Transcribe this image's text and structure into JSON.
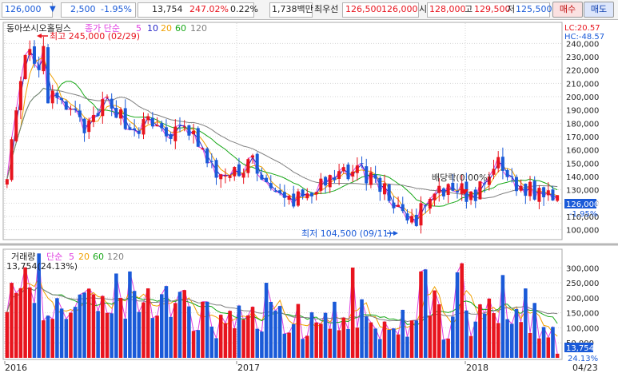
{
  "toolbar": {
    "price": "126,000",
    "down_arrow": "▼",
    "change": "2,500",
    "change_pct": "-1.95%",
    "volume": "13,754",
    "volume_ratio": "247.02%",
    "turnover": "0.22%",
    "amount": "1,738백만",
    "best_label": "최우선",
    "best_ask": "126,500",
    "best_bid": "126,000",
    "open_label": "시",
    "open": "128,000",
    "high_label": "고",
    "high": "129,500",
    "low_label": "저",
    "low": "125,500",
    "buy_button": "매수",
    "sell_button": "매도"
  },
  "price_panel": {
    "title": "동아쏘시오홀딩스",
    "legend_prefix": "종가 단순",
    "ma_periods": [
      "5",
      "10",
      "20",
      "60",
      "120"
    ],
    "ma_colors": [
      "#e040e0",
      "#2828c8",
      "#f0a000",
      "#18a818",
      "#808080"
    ],
    "lc_label": "LC:20.57",
    "hc_label": "HC:-48.57",
    "max_marker": "최고 245,000 (02/29)",
    "min_marker": "최저 104,500 (09/11)",
    "dividend_marker": "배당락(0.00%)",
    "current_price_tag": "126,000",
    "current_pct_tag": "-1.95%",
    "y_ticks": [
      "240,000",
      "230,000",
      "220,000",
      "210,000",
      "200,000",
      "190,000",
      "180,000",
      "170,000",
      "160,000",
      "150,000",
      "140,000",
      "130,000",
      "120,000",
      "110,000",
      "100,000"
    ]
  },
  "volume_panel": {
    "legend_prefix": "거래량",
    "legend_ma": "단순",
    "ma_periods": [
      "5",
      "20",
      "60",
      "120"
    ],
    "ma_colors": [
      "#e040e0",
      "#f0a000",
      "#18a818",
      "#808080"
    ],
    "last_value": "13,754(24.13%)",
    "current_tag": "13,754",
    "current_pct_tag": "24.13%",
    "y_ticks": [
      "300,000",
      "250,000",
      "200,000",
      "150,000",
      "100,000",
      "50,000"
    ]
  },
  "x_axis": {
    "labels": [
      "2016",
      "2017",
      "2018"
    ],
    "end_label": "04/23"
  },
  "colors": {
    "up": "#e8141e",
    "down": "#1a5ad8",
    "price_tag_bg": "#1a5ad8",
    "grid": "#d6d6d6"
  },
  "chart_data": {
    "type": "candlestick",
    "title": "동아쏘시오홀딩스",
    "period": [
      "2016",
      "04/23"
    ],
    "price_range": [
      100000,
      245000
    ],
    "approx_close_path": [
      {
        "t": "2016-01",
        "close": 145000
      },
      {
        "t": "2016-02",
        "close": 235000
      },
      {
        "t": "2016-03",
        "close": 200000
      },
      {
        "t": "2016-04",
        "close": 190000
      },
      {
        "t": "2016-05",
        "close": 175000
      },
      {
        "t": "2016-06",
        "close": 200000
      },
      {
        "t": "2016-07",
        "close": 175000
      },
      {
        "t": "2016-08",
        "close": 180000
      },
      {
        "t": "2016-09",
        "close": 172000
      },
      {
        "t": "2016-10",
        "close": 175000
      },
      {
        "t": "2016-11",
        "close": 145000
      },
      {
        "t": "2016-12",
        "close": 138000
      },
      {
        "t": "2017-01",
        "close": 155000
      },
      {
        "t": "2017-02",
        "close": 125000
      },
      {
        "t": "2017-03",
        "close": 122000
      },
      {
        "t": "2017-04",
        "close": 130000
      },
      {
        "t": "2017-05",
        "close": 135000
      },
      {
        "t": "2017-06",
        "close": 148000
      },
      {
        "t": "2017-07",
        "close": 138000
      },
      {
        "t": "2017-08",
        "close": 120000
      },
      {
        "t": "2017-09",
        "close": 108000
      },
      {
        "t": "2017-10",
        "close": 125000
      },
      {
        "t": "2017-11",
        "close": 130000
      },
      {
        "t": "2017-12",
        "close": 124000
      },
      {
        "t": "2018-01",
        "close": 150000
      },
      {
        "t": "2018-02",
        "close": 133000
      },
      {
        "t": "2018-03",
        "close": 128000
      },
      {
        "t": "2018-04",
        "close": 126000
      }
    ],
    "max": {
      "label": "최고",
      "value": 245000,
      "date": "02/29"
    },
    "min": {
      "label": "최저",
      "value": 104500,
      "date": "09/11"
    },
    "last_close": 126000,
    "last_change_pct": -1.95,
    "volume_range": [
      0,
      320000
    ],
    "last_volume": 13754
  }
}
